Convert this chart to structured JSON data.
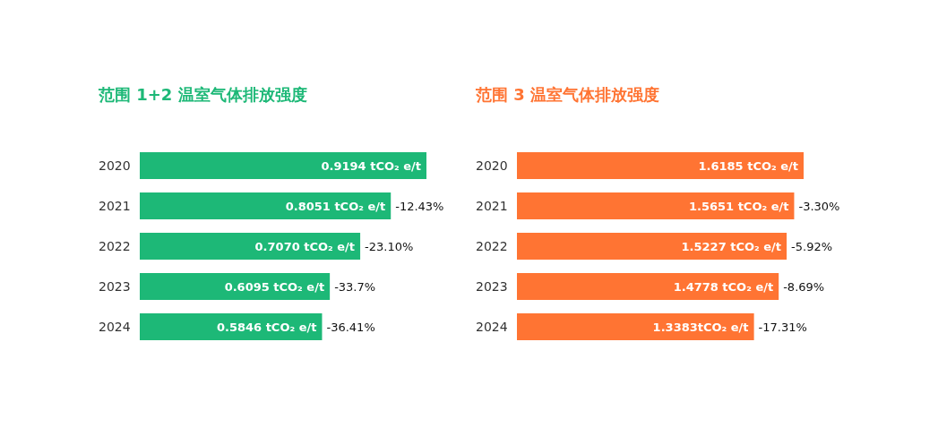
{
  "chart_data": [
    {
      "type": "bar",
      "orientation": "horizontal",
      "title": "范围 1+2 温室气体排放强度",
      "categories": [
        "2020",
        "2021",
        "2022",
        "2023",
        "2024"
      ],
      "values": [
        0.9194,
        0.8051,
        0.707,
        0.6095,
        0.5846
      ],
      "color": "#1db877",
      "value_labels": [
        "0.9194 tCO₂ e/t",
        "0.8051 tCO₂ e/t",
        "0.7070 tCO₂ e/t",
        "0.6095 tCO₂ e/t",
        "0.5846 tCO₂ e/t"
      ],
      "annotations": [
        {
          "text": "-12.43%",
          "x": 0.8051,
          "y": "2021"
        },
        {
          "text": "-23.10%",
          "x": 0.707,
          "y": "2022"
        },
        {
          "text": "-33.7%",
          "x": 0.6095,
          "y": "2023"
        },
        {
          "text": "-36.41%",
          "x": 0.5846,
          "y": "2024"
        }
      ]
    },
    {
      "type": "bar",
      "orientation": "horizontal",
      "title": "范围 3 温室气体排放强度",
      "categories": [
        "2020",
        "2021",
        "2022",
        "2023",
        "2024"
      ],
      "values": [
        1.6185,
        1.5651,
        1.5227,
        1.4778,
        1.3383
      ],
      "color": "#ff7433",
      "value_labels": [
        "1.6185 tCO₂ e/t",
        "1.5651 tCO₂ e/t",
        "1.5227 tCO₂ e/t",
        "1.4778 tCO₂ e/t",
        "1.3383tCO₂ e/t"
      ],
      "annotations": [
        {
          "text": "-3.30%",
          "x": 1.5651,
          "y": "2021"
        },
        {
          "text": "-5.92%",
          "x": 1.5227,
          "y": "2022"
        },
        {
          "text": "-8.69%",
          "x": 1.4778,
          "y": "2023"
        },
        {
          "text": "-17.31%",
          "x": 1.3383,
          "y": "2024"
        }
      ]
    }
  ]
}
